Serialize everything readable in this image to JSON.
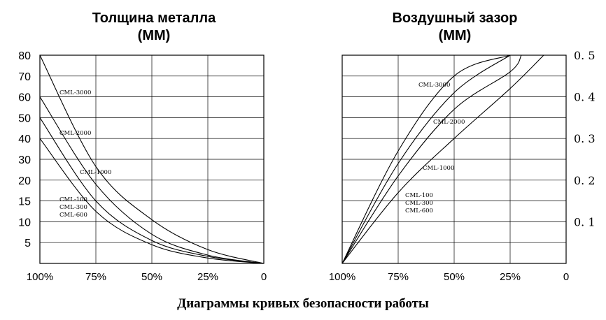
{
  "captions": {
    "left_title": [
      "Толщина металла",
      "(ММ)"
    ],
    "right_title": [
      "Воздушный зазор",
      "(ММ)"
    ],
    "bottom": "Диаграммы кривых безопасности работы"
  },
  "chart_data": [
    {
      "type": "line",
      "title": "Толщина металла (ММ)",
      "x_tick_labels": [
        "100%",
        "75%",
        "50%",
        "25%",
        "0"
      ],
      "x_values": [
        100,
        75,
        50,
        25,
        0
      ],
      "xlim": [
        100,
        0
      ],
      "y_tick_labels": [
        "5",
        "10",
        "15",
        "20",
        "30",
        "40",
        "50",
        "60",
        "70",
        "80"
      ],
      "y_tick_values": [
        5,
        10,
        15,
        20,
        30,
        40,
        50,
        60,
        70,
        80
      ],
      "y_tick_positions": [
        1,
        2,
        3,
        4,
        5,
        6,
        7,
        8,
        9,
        10
      ],
      "ylim": [
        0,
        80
      ],
      "grid": true,
      "series": [
        {
          "name": "CML-3000",
          "x": [
            100,
            75,
            50,
            25,
            0
          ],
          "y": [
            80,
            26.5,
            10.5,
            3.3,
            0
          ]
        },
        {
          "name": "CML-2000",
          "x": [
            100,
            75,
            50,
            25,
            0
          ],
          "y": [
            60,
            19,
            7,
            2,
            0
          ]
        },
        {
          "name": "CML-1000",
          "x": [
            100,
            75,
            50,
            25,
            0
          ],
          "y": [
            50,
            15,
            5.5,
            1.7,
            0
          ]
        },
        {
          "name": "CML-100 / CML-300 / CML-600",
          "x": [
            100,
            75,
            50,
            25,
            0
          ],
          "y": [
            40,
            12.5,
            4.5,
            1.3,
            0
          ]
        }
      ],
      "label_lines": [
        [
          "CML-3000"
        ],
        [
          "CML-2000"
        ],
        [
          "CML-1000"
        ],
        [
          "CML-100",
          "CML-300",
          "CML-600"
        ]
      ]
    },
    {
      "type": "line",
      "title": "Воздушный зазор (ММ)",
      "x_tick_labels": [
        "100%",
        "75%",
        "50%",
        "25%",
        "0"
      ],
      "x_values": [
        100,
        75,
        50,
        25,
        0
      ],
      "xlim": [
        100,
        0
      ],
      "y_tick_labels": [
        "0. 1",
        "0. 2",
        "0. 3",
        "0. 4",
        "0. 5"
      ],
      "y_tick_values": [
        0.1,
        0.2,
        0.3,
        0.4,
        0.5
      ],
      "ylim": [
        0,
        0.5
      ],
      "y_axis_side": "right",
      "grid": true,
      "series": [
        {
          "name": "CML-3000",
          "x": [
            100,
            75,
            50,
            25
          ],
          "y": [
            0,
            0.27,
            0.45,
            0.5
          ]
        },
        {
          "name": "CML-2000",
          "x": [
            100,
            75,
            50,
            25
          ],
          "y": [
            0,
            0.24,
            0.41,
            0.5
          ]
        },
        {
          "name": "CML-1000",
          "x": [
            100,
            75,
            50,
            25,
            20
          ],
          "y": [
            0,
            0.21,
            0.37,
            0.46,
            0.5
          ]
        },
        {
          "name": "CML-100 / CML-300 / CML-600",
          "x": [
            100,
            75,
            50,
            25,
            10
          ],
          "y": [
            0,
            0.17,
            0.3,
            0.42,
            0.5
          ]
        }
      ],
      "label_lines": [
        [
          "CML-3000"
        ],
        [
          "CML-2000"
        ],
        [
          "CML-1000"
        ],
        [
          "CML-100",
          "CML-300",
          "CML-600"
        ]
      ]
    }
  ]
}
